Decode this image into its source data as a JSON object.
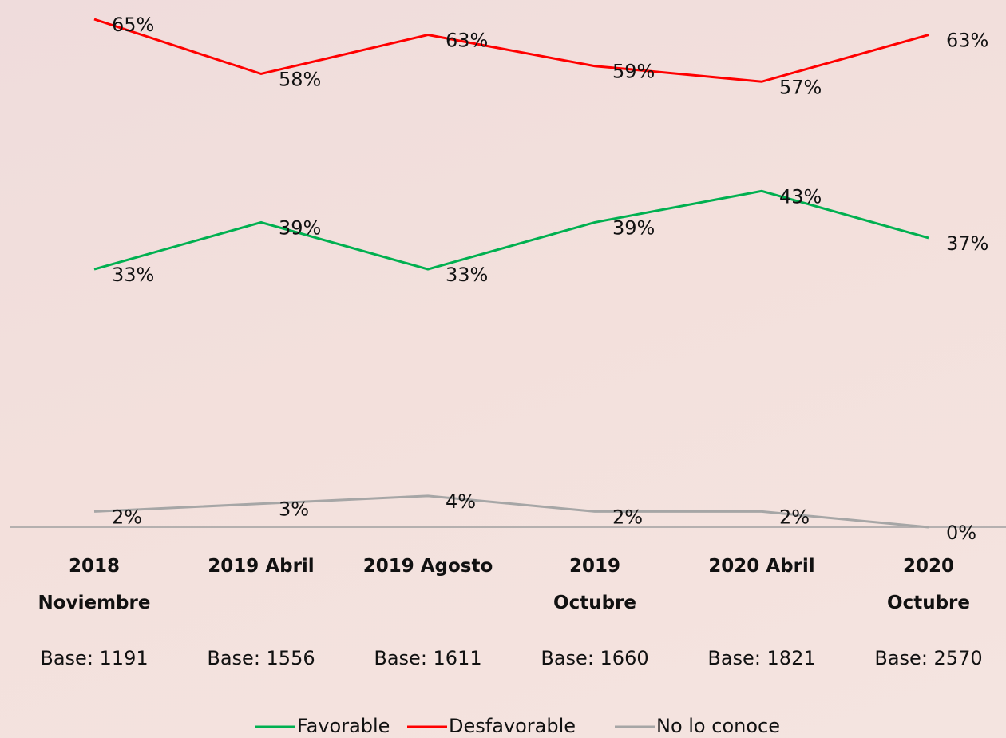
{
  "chart_data": {
    "type": "line",
    "categories": [
      "2018 Noviembre",
      "2019 Abril",
      "2019 Agosto",
      "2019 Octubre",
      "2020 Abril",
      "2020 Octubre"
    ],
    "bases": [
      "Base: 1191",
      "Base: 1556",
      "Base: 1611",
      "Base: 1660",
      "Base: 1821",
      "Base: 2570"
    ],
    "ylim": [
      0,
      65
    ],
    "series": [
      {
        "name": "Favorable",
        "color": "#00b050",
        "values": [
          33,
          39,
          33,
          39,
          43,
          37
        ],
        "value_labels": [
          "33%",
          "39%",
          "33%",
          "39%",
          "43%",
          "37%"
        ]
      },
      {
        "name": "Desfavorable",
        "color": "#ff0000",
        "values": [
          65,
          58,
          63,
          59,
          57,
          63
        ],
        "value_labels": [
          "65%",
          "58%",
          "63%",
          "59%",
          "57%",
          "63%"
        ]
      },
      {
        "name": "No lo conoce",
        "color": "#a6a6a6",
        "values": [
          2,
          3,
          4,
          2,
          2,
          0
        ],
        "value_labels": [
          "2%",
          "3%",
          "4%",
          "2%",
          "2%",
          "0%"
        ]
      }
    ]
  }
}
